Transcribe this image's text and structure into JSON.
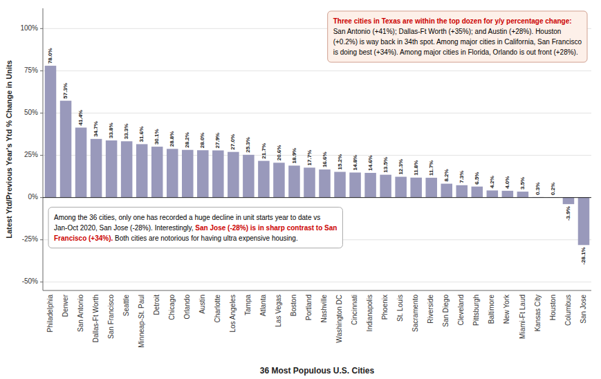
{
  "chart_data": {
    "type": "bar",
    "categories": [
      "Philadelphia",
      "Denver",
      "San Antonio",
      "Dallas-Ft Worth",
      "San Francisco",
      "Seattle",
      "Minneap-St. Paul",
      "Detroit",
      "Chicago",
      "Orlando",
      "Austin",
      "Charlotte",
      "Los Angeles",
      "Tampa",
      "Atlanta",
      "Las Vegas",
      "Boston",
      "Portland",
      "Nashville",
      "Washington DC",
      "Cincinnati",
      "Indianapolis",
      "Phoenix",
      "St. Louis",
      "Sacramento",
      "Riverside",
      "San Diego",
      "Cleveland",
      "Pittsburgh",
      "Baltimore",
      "New York",
      "Miami-Ft Laud",
      "Kansas City",
      "Houston",
      "Columbus",
      "San Jose"
    ],
    "values": [
      78.0,
      57.3,
      41.4,
      34.7,
      33.8,
      33.3,
      31.6,
      30.1,
      28.8,
      28.2,
      28.0,
      27.9,
      27.0,
      25.3,
      21.7,
      20.6,
      18.9,
      17.7,
      16.6,
      15.2,
      14.8,
      14.6,
      13.5,
      12.3,
      11.8,
      11.7,
      8.2,
      7.3,
      6.5,
      4.2,
      4.0,
      3.5,
      0.3,
      0.2,
      -3.9,
      -28.1
    ],
    "value_labels": [
      "78.0%",
      "57.3%",
      "41.4%",
      "34.7%",
      "33.8%",
      "33.3%",
      "31.6%",
      "30.1%",
      "28.8%",
      "28.2%",
      "28.0%",
      "27.9%",
      "27.0%",
      "25.3%",
      "21.7%",
      "20.6%",
      "18.9%",
      "17.7%",
      "16.6%",
      "15.2%",
      "14.8%",
      "14.6%",
      "13.5%",
      "12.3%",
      "11.8%",
      "11.7%",
      "8.2%",
      "7.3%",
      "6.5%",
      "4.2%",
      "4.0%",
      "3.5%",
      "0.3%",
      "0.2%",
      "-3.9%",
      "-28.1%"
    ],
    "color": "#9999bb",
    "ylabel": "Latest Ytd/Previous Year's Ytd % Change in Units",
    "xlabel": "36 Most Populous U.S. Cities",
    "ylim": [
      -55,
      112
    ],
    "yticks": [
      {
        "value": -50,
        "label": "-50%"
      },
      {
        "value": -25,
        "label": "-25%"
      },
      {
        "value": 0,
        "label": "0%"
      },
      {
        "value": 25,
        "label": "25%"
      },
      {
        "value": 50,
        "label": "50%"
      },
      {
        "value": 75,
        "label": "75%"
      },
      {
        "value": 100,
        "label": "100%"
      }
    ],
    "grid": true,
    "data_labels": true,
    "annotations": [
      [
        [
          {
            "text": "Three cities in Texas are within the top dozen for y/y percentage change:",
            "color": "#cc0000"
          }
        ],
        [
          {
            "text": "San Antonio (+41%); Dallas-Ft Worth (+35%); and Austin (+28%). Houston"
          }
        ],
        [
          {
            "text": "(+0.2%) is way back in 34th spot. Among major cities in California, San Francisco"
          }
        ],
        [
          {
            "text": "is doing best (+34%). Among major cities in Florida, Orlando is out front (+28%)."
          }
        ]
      ],
      [
        [
          {
            "text": "Among the 36 cities, only one has recorded a huge decline in unit starts year to date vs"
          }
        ],
        [
          {
            "text": "Jan-Oct 2020, San Jose (-28%). Interestingly, "
          },
          {
            "text": "San Jose (-28%) is in sharp contrast to San",
            "color": "#cc0000"
          }
        ],
        [
          {
            "text": "Francisco (+34%).",
            "color": "#cc0000"
          },
          {
            "text": " Both cities are notorious for having ultra expensive housing."
          }
        ]
      ]
    ]
  }
}
